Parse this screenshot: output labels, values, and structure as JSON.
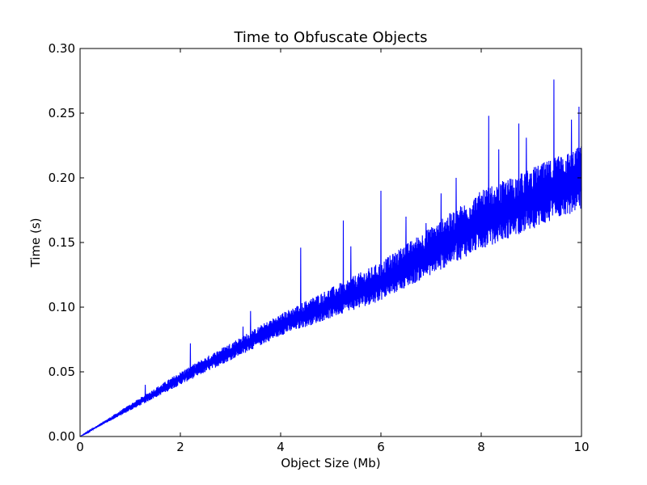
{
  "chart_data": {
    "type": "line",
    "title": "Time to Obfuscate Objects",
    "xlabel": "Object Size (Mb)",
    "ylabel": "Time (s)",
    "xlim": [
      0,
      10
    ],
    "ylim": [
      0.0,
      0.3
    ],
    "x_ticks": [
      0,
      2,
      4,
      6,
      8,
      10
    ],
    "x_tick_labels": [
      "0",
      "2",
      "4",
      "6",
      "8",
      "10"
    ],
    "y_ticks": [
      0.0,
      0.05,
      0.1,
      0.15,
      0.2,
      0.25,
      0.3
    ],
    "y_tick_labels": [
      "0.00",
      "0.05",
      "0.10",
      "0.15",
      "0.20",
      "0.25",
      "0.30"
    ],
    "grid": false,
    "series": [
      {
        "color": "#0000ff",
        "trend_lower": [
          [
            0,
            0.0
          ],
          [
            2,
            0.04
          ],
          [
            4,
            0.078
          ],
          [
            6,
            0.105
          ],
          [
            8,
            0.145
          ],
          [
            10,
            0.175
          ]
        ],
        "trend_upper": [
          [
            0,
            0.0
          ],
          [
            2,
            0.05
          ],
          [
            4,
            0.095
          ],
          [
            6,
            0.135
          ],
          [
            8,
            0.19
          ],
          [
            10,
            0.225
          ]
        ],
        "spikes": [
          [
            1.3,
            0.04
          ],
          [
            2.2,
            0.072
          ],
          [
            3.25,
            0.085
          ],
          [
            3.4,
            0.097
          ],
          [
            4.4,
            0.146
          ],
          [
            5.25,
            0.167
          ],
          [
            5.4,
            0.147
          ],
          [
            6.0,
            0.19
          ],
          [
            6.5,
            0.17
          ],
          [
            6.9,
            0.165
          ],
          [
            7.2,
            0.188
          ],
          [
            7.5,
            0.2
          ],
          [
            8.15,
            0.248
          ],
          [
            8.35,
            0.222
          ],
          [
            8.75,
            0.242
          ],
          [
            8.9,
            0.231
          ],
          [
            9.45,
            0.276
          ],
          [
            9.6,
            0.215
          ],
          [
            9.8,
            0.245
          ],
          [
            9.95,
            0.255
          ]
        ]
      }
    ]
  }
}
